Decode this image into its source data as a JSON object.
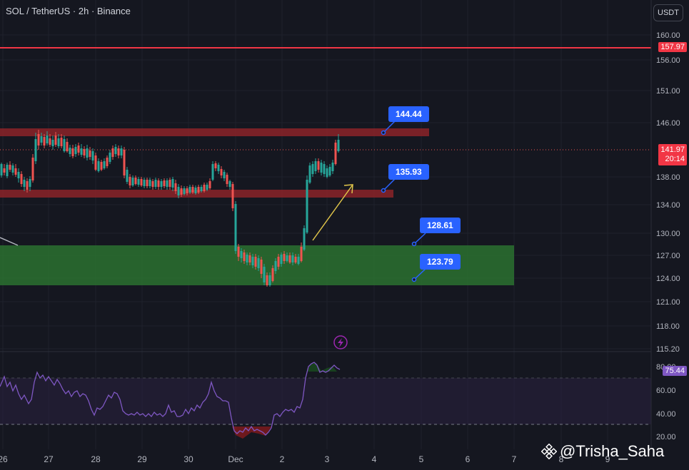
{
  "header": {
    "symbol_line": "SOL / TetherUS · 2h · Binance",
    "currency_button": "USDT"
  },
  "price_axis": {
    "ticks": [
      "160.00",
      "156.00",
      "151.00",
      "146.00",
      "142.00",
      "138.00",
      "134.00",
      "130.00",
      "127.00",
      "124.00",
      "121.00",
      "118.00",
      "115.20"
    ],
    "resistance_label": "157.97",
    "last_price": "141.97",
    "countdown": "20:14"
  },
  "rsi_axis": {
    "ticks": [
      "80.00",
      "60.00",
      "40.00",
      "20.00"
    ],
    "value": "75.44"
  },
  "time_axis": {
    "ticks": [
      "26",
      "27",
      "28",
      "29",
      "30",
      "Dec",
      "2",
      "3",
      "4",
      "5",
      "6",
      "7",
      "8",
      "9"
    ]
  },
  "callouts": [
    "144.44",
    "135.93",
    "128.61",
    "123.79"
  ],
  "watermark": {
    "text": "@Trisha_Saha"
  },
  "colors": {
    "background": "#151720",
    "up_candle": "#26a69a",
    "down_candle": "#ef5350",
    "resistance_zone": "#8b2329",
    "support_zone": "#2e7d32",
    "callout": "#2962ff",
    "rsi_line": "#7e57c2",
    "horizontal_line": "#f23645"
  },
  "chart_data": {
    "type": "candlestick",
    "x": [
      "26",
      "27",
      "28",
      "29",
      "30",
      "Dec",
      "2",
      "3",
      "4",
      "5",
      "6",
      "7",
      "8",
      "9"
    ],
    "ylim": [
      115.2,
      162
    ],
    "levels": {
      "resistance_line": 157.97,
      "resistance_zone": [
        144.44,
        145.6
      ],
      "mid_zone": [
        135.93,
        137.0
      ],
      "support_zone": [
        123.79,
        128.61
      ]
    },
    "last_price": 141.97,
    "rsi": {
      "value": 75.44,
      "ylim": [
        20,
        90
      ],
      "band": [
        30,
        70
      ]
    }
  }
}
